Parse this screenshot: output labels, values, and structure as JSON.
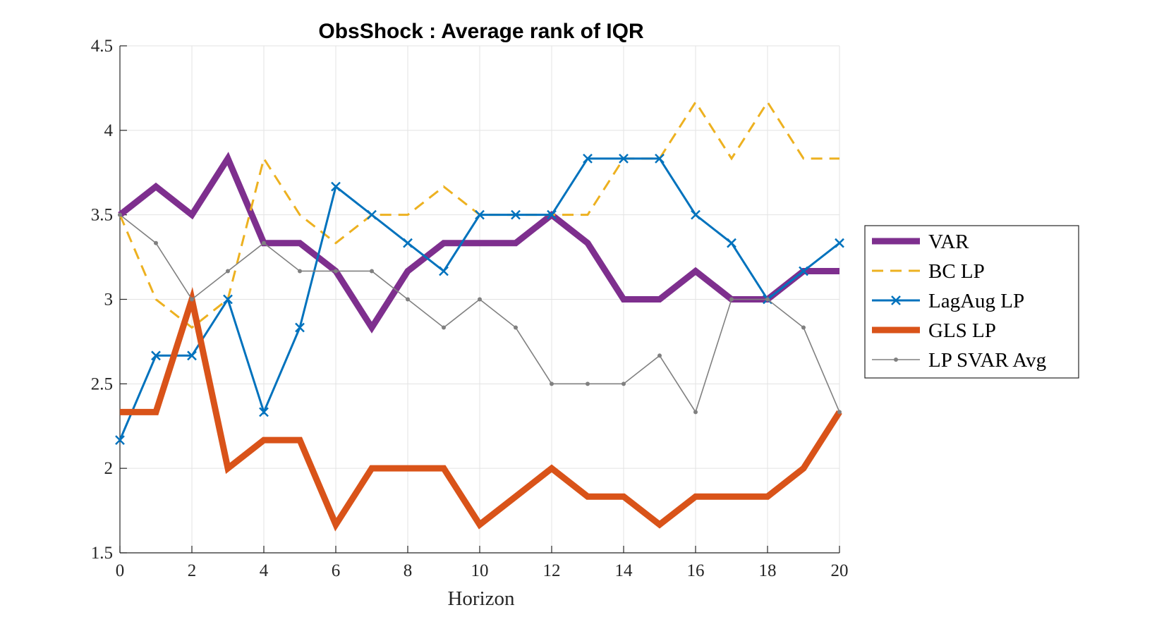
{
  "chart_data": {
    "type": "line",
    "title": "ObsShock : Average rank of IQR",
    "xlabel": "Horizon",
    "ylabel": "",
    "xlim": [
      0,
      20
    ],
    "ylim": [
      1.5,
      4.5
    ],
    "xticks": [
      0,
      2,
      4,
      6,
      8,
      10,
      12,
      14,
      16,
      18,
      20
    ],
    "yticks": [
      1.5,
      2,
      2.5,
      3,
      3.5,
      4,
      4.5
    ],
    "xtick_labels": [
      "0",
      "2",
      "4",
      "6",
      "8",
      "10",
      "12",
      "14",
      "16",
      "18",
      "20"
    ],
    "ytick_labels": [
      "1.5",
      "2",
      "2.5",
      "3",
      "3.5",
      "4",
      "4.5"
    ],
    "grid": true,
    "legend_position": "outside-right",
    "x": [
      0,
      1,
      2,
      3,
      4,
      5,
      6,
      7,
      8,
      9,
      10,
      11,
      12,
      13,
      14,
      15,
      16,
      17,
      18,
      19,
      20
    ],
    "series": [
      {
        "name": "VAR",
        "color": "#7E2F8E",
        "style": "solid",
        "marker": "none",
        "width": 9,
        "values": [
          3.5,
          3.667,
          3.5,
          3.833,
          3.333,
          3.333,
          3.167,
          2.833,
          3.167,
          3.333,
          3.333,
          3.333,
          3.5,
          3.333,
          3.0,
          3.0,
          3.167,
          3.0,
          3.0,
          3.167,
          3.167
        ]
      },
      {
        "name": "BC LP",
        "color": "#EDB120",
        "style": "dashed",
        "marker": "none",
        "width": 3,
        "values": [
          3.5,
          3.0,
          2.833,
          3.0,
          3.833,
          3.5,
          3.333,
          3.5,
          3.5,
          3.667,
          3.5,
          3.5,
          3.5,
          3.5,
          3.833,
          3.833,
          4.167,
          3.833,
          4.167,
          3.833,
          3.833
        ]
      },
      {
        "name": "LagAug LP",
        "color": "#0072BD",
        "style": "solid",
        "marker": "x",
        "width": 3,
        "values": [
          2.167,
          2.667,
          2.667,
          3.0,
          2.333,
          2.833,
          3.667,
          3.5,
          3.333,
          3.167,
          3.5,
          3.5,
          3.5,
          3.833,
          3.833,
          3.833,
          3.5,
          3.333,
          3.0,
          3.167,
          3.333
        ]
      },
      {
        "name": "GLS LP",
        "color": "#D95319",
        "style": "solid",
        "marker": "none",
        "width": 9,
        "values": [
          2.333,
          2.333,
          3.0,
          2.0,
          2.167,
          2.167,
          1.667,
          2.0,
          2.0,
          2.0,
          1.667,
          1.833,
          2.0,
          1.833,
          1.833,
          1.667,
          1.833,
          1.833,
          1.833,
          2.0,
          2.333
        ]
      },
      {
        "name": "LP SVAR Avg",
        "color": "#808080",
        "style": "solid",
        "marker": "dot",
        "width": 1.6,
        "values": [
          3.5,
          3.333,
          3.0,
          3.167,
          3.333,
          3.167,
          3.167,
          3.167,
          3.0,
          2.833,
          3.0,
          2.833,
          2.5,
          2.5,
          2.5,
          2.667,
          2.333,
          3.0,
          3.0,
          2.833,
          2.333
        ]
      }
    ]
  }
}
